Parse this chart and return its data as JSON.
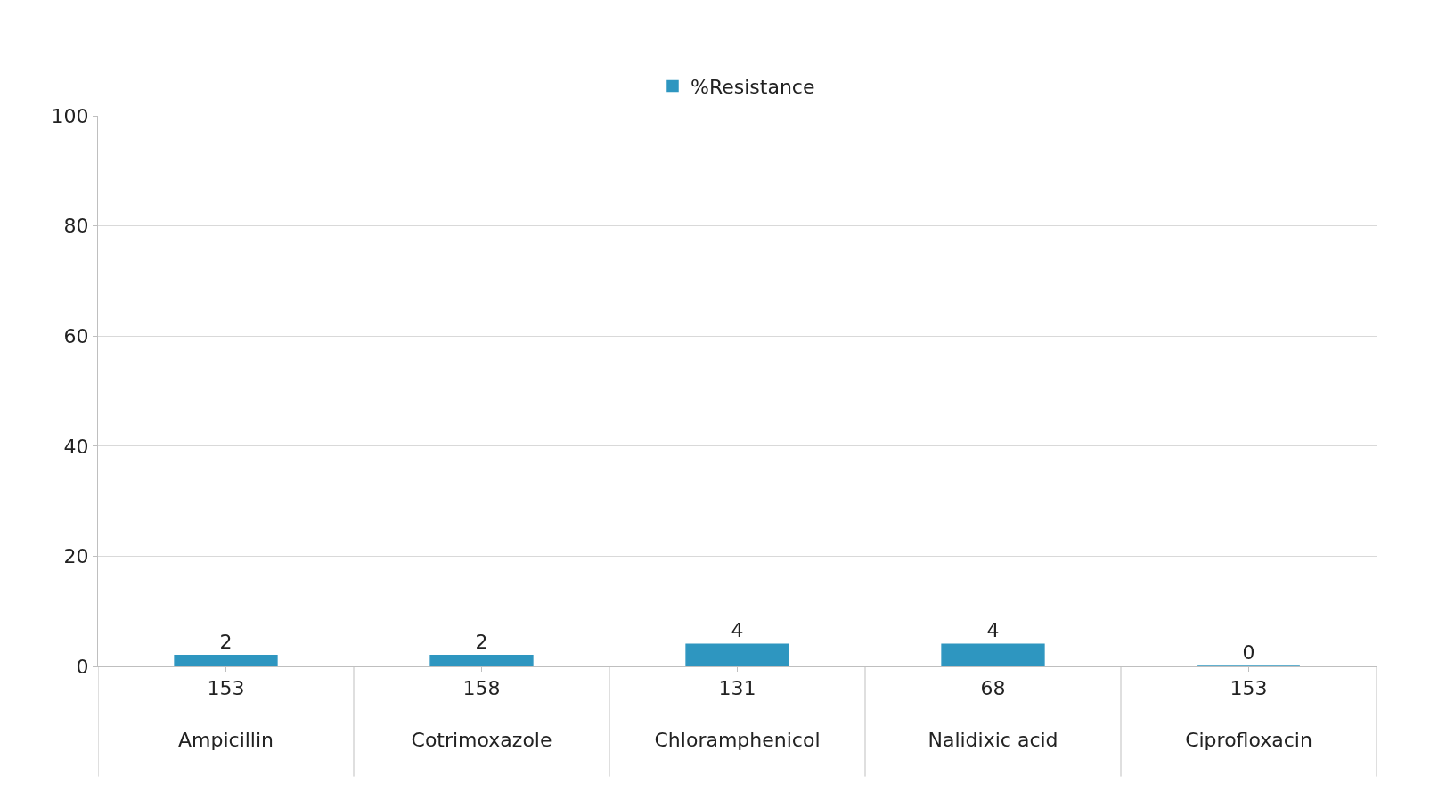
{
  "chart_data": {
    "type": "bar",
    "categories": [
      "153\nAmpicillin",
      "158\nCotrimoxazole",
      "131\nChloramphenicol",
      "68\nNalidixic acid",
      "153\nCiprofloxacin"
    ],
    "series": [
      {
        "name": "%Resistance",
        "color": "#2e96c0",
        "values": [
          2,
          2,
          4,
          4,
          0
        ]
      }
    ],
    "ylim": [
      0,
      100
    ],
    "yticks": [
      0,
      20,
      40,
      60,
      80,
      100
    ],
    "grid": "y",
    "legend": "top",
    "data_labels": true
  }
}
